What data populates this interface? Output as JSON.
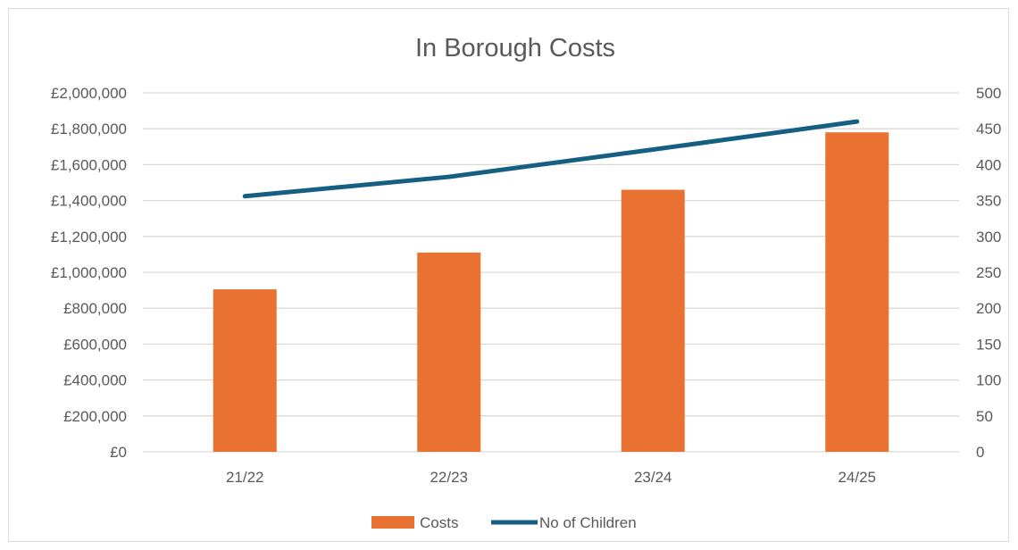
{
  "chart_data": {
    "type": "bar",
    "title": "In Borough Costs",
    "categories": [
      "21/22",
      "22/23",
      "23/24",
      "24/25"
    ],
    "series": [
      {
        "name": "Costs",
        "type": "bar",
        "axis": "left",
        "values": [
          905000,
          1110000,
          1460000,
          1780000
        ]
      },
      {
        "name": "No of Children",
        "type": "line",
        "axis": "right",
        "values": [
          356,
          383,
          421,
          460
        ]
      }
    ],
    "y_left": {
      "min": 0,
      "max": 2000000,
      "step": 200000,
      "tick_labels": [
        "£0",
        "£200,000",
        "£400,000",
        "£600,000",
        "£800,000",
        "£1,000,000",
        "£1,200,000",
        "£1,400,000",
        "£1,600,000",
        "£1,800,000",
        "£2,000,000"
      ]
    },
    "y_right": {
      "min": 0,
      "max": 500,
      "step": 50,
      "tick_labels": [
        "0",
        "50",
        "100",
        "150",
        "200",
        "250",
        "300",
        "350",
        "400",
        "450",
        "500"
      ]
    },
    "grid": true,
    "legend_position": "bottom",
    "colors": {
      "bar": "#E97132",
      "line": "#156082",
      "grid": "#d9d9d9",
      "text": "#595959"
    }
  }
}
